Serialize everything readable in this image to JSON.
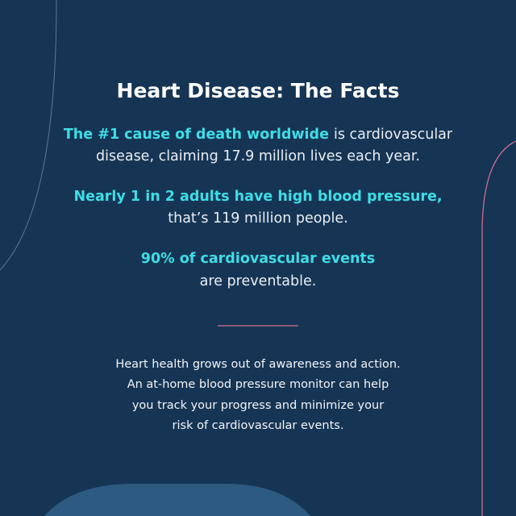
{
  "title": "Heart Disease: The Facts",
  "facts": [
    {
      "highlight": "The #1 cause of death worldwide",
      "text": [
        "is cardiovascular",
        "disease, claiming 17.9 million lives each year."
      ]
    },
    {
      "highlight": "Nearly 1 in 2 adults have high blood pressure,",
      "text": [
        "that’s 119 million people."
      ]
    },
    {
      "highlight": "90% of cardiovascular events",
      "text": [
        "are preventable."
      ]
    }
  ],
  "paragraph": [
    "Heart health grows out of awareness and action.",
    "An at-home blood pressure monitor can help",
    "you track your progress and minimize your",
    "risk of cardiovascular events."
  ]
}
